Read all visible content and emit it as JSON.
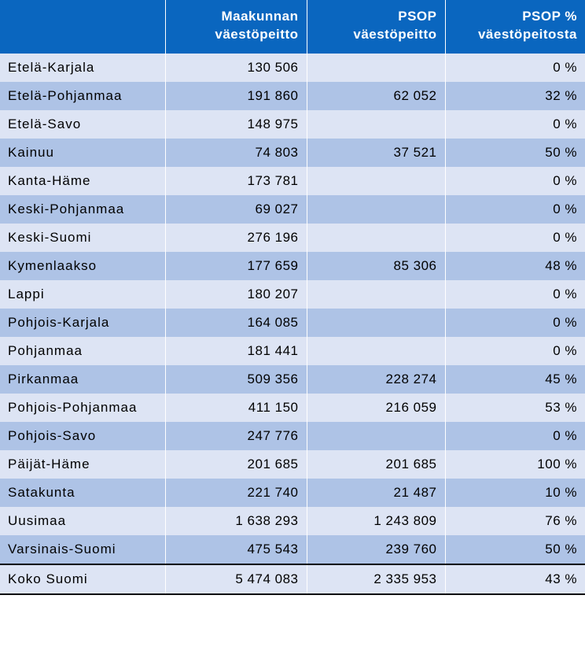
{
  "colors": {
    "header_bg": "#0a66bf",
    "header_fg": "#ffffff",
    "row_light": "#dde4f4",
    "row_dark": "#aec3e6",
    "total_bg": "#dde4f4"
  },
  "headers": {
    "region": "",
    "col1_line1": "Maakunnan",
    "col1_line2": "väestöpeitto",
    "col2_line1": "PSOP",
    "col2_line2": "väestöpeitto",
    "col3_line1": "PSOP %",
    "col3_line2": "väestöpeitosta"
  },
  "rows": [
    {
      "region": "Etelä-Karjala",
      "pop": "130 506",
      "psop": "",
      "pct": "0 %"
    },
    {
      "region": "Etelä-Pohjanmaa",
      "pop": "191 860",
      "psop": "62 052",
      "pct": "32 %"
    },
    {
      "region": "Etelä-Savo",
      "pop": "148 975",
      "psop": "",
      "pct": "0 %"
    },
    {
      "region": "Kainuu",
      "pop": "74 803",
      "psop": "37 521",
      "pct": "50 %"
    },
    {
      "region": "Kanta-Häme",
      "pop": "173 781",
      "psop": "",
      "pct": "0 %"
    },
    {
      "region": "Keski-Pohjanmaa",
      "pop": "69 027",
      "psop": "",
      "pct": "0 %"
    },
    {
      "region": "Keski-Suomi",
      "pop": "276 196",
      "psop": "",
      "pct": "0 %"
    },
    {
      "region": "Kymenlaakso",
      "pop": "177 659",
      "psop": "85 306",
      "pct": "48 %"
    },
    {
      "region": "Lappi",
      "pop": "180 207",
      "psop": "",
      "pct": "0 %"
    },
    {
      "region": "Pohjois-Karjala",
      "pop": "164 085",
      "psop": "",
      "pct": "0 %"
    },
    {
      "region": "Pohjanmaa",
      "pop": "181 441",
      "psop": "",
      "pct": "0 %"
    },
    {
      "region": "Pirkanmaa",
      "pop": "509 356",
      "psop": "228 274",
      "pct": "45 %"
    },
    {
      "region": "Pohjois-Pohjanmaa",
      "pop": "411 150",
      "psop": "216 059",
      "pct": "53 %"
    },
    {
      "region": "Pohjois-Savo",
      "pop": "247 776",
      "psop": "",
      "pct": "0 %"
    },
    {
      "region": "Päijät-Häme",
      "pop": "201 685",
      "psop": "201 685",
      "pct": "100 %"
    },
    {
      "region": "Satakunta",
      "pop": "221 740",
      "psop": "21 487",
      "pct": "10 %"
    },
    {
      "region": "Uusimaa",
      "pop": "1 638 293",
      "psop": "1 243 809",
      "pct": "76 %"
    },
    {
      "region": "Varsinais-Suomi",
      "pop": "475 543",
      "psop": "239 760",
      "pct": "50 %"
    }
  ],
  "total": {
    "region": "Koko Suomi",
    "pop": "5 474 083",
    "psop": "2 335 953",
    "pct": "43 %"
  }
}
